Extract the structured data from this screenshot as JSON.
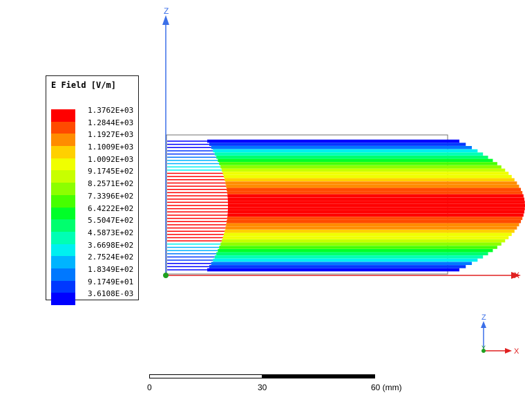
{
  "legend": {
    "title": "E Field [V/m]",
    "values": [
      "1.3762E+03",
      "1.2844E+03",
      "1.1927E+03",
      "1.1009E+03",
      "1.0092E+03",
      "9.1745E+02",
      "8.2571E+02",
      "7.3396E+02",
      "6.4222E+02",
      "5.5047E+02",
      "4.5873E+02",
      "3.6698E+02",
      "2.7524E+02",
      "1.8349E+02",
      "9.1749E+01",
      "3.6108E-03"
    ],
    "colors": [
      "#ff0000",
      "#ff4a00",
      "#ff8c00",
      "#ffd000",
      "#f0ff00",
      "#c8ff00",
      "#8cff00",
      "#46ff00",
      "#00ff28",
      "#00ff6e",
      "#00ffb4",
      "#00f0f0",
      "#00b4ff",
      "#0078ff",
      "#0038ff",
      "#0000ff"
    ]
  },
  "axes": {
    "main": {
      "z_label": "Z",
      "x_label": "X"
    },
    "triad": {
      "z_label": "Z",
      "x_label": "X",
      "y_label": "Y"
    }
  },
  "scale_bar": {
    "labels": [
      "0",
      "30",
      "60 (mm)"
    ]
  },
  "colors": {
    "axis_z": "#3b6fe8",
    "axis_x": "#e02020",
    "axis_y": "#20a020",
    "outline": "#707070"
  }
}
